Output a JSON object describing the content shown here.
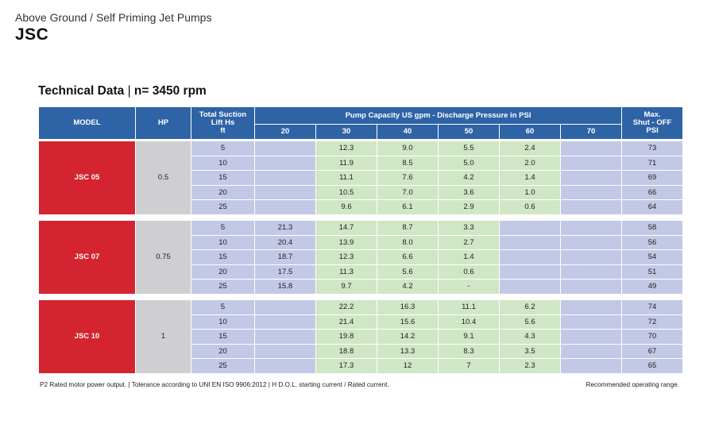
{
  "header": {
    "subtitle": "Above Ground / Self Priming Jet Pumps",
    "title": "JSC"
  },
  "tech_data": {
    "label": "Technical Data",
    "separator": "|",
    "rpm": "n= 3450 rpm"
  },
  "table": {
    "headers": {
      "model": "MODEL",
      "hp": "HP",
      "suction_line1": "Total Suction",
      "suction_line2": "Lift Hs",
      "suction_line3": "ft",
      "capacity": "Pump Capacity US gpm - Discharge Pressure in PSI",
      "max_line1": "Max.",
      "max_line2": "Shut - OFF",
      "max_line3": "PSI",
      "pressures": [
        "20",
        "30",
        "40",
        "50",
        "60",
        "70"
      ]
    },
    "models": [
      {
        "name": "JSC 05",
        "hp": "0.5",
        "rows": [
          {
            "lift": "5",
            "cells": [
              "",
              "12.3",
              "9.0",
              "5.5",
              "2.4",
              ""
            ],
            "max": "73"
          },
          {
            "lift": "10",
            "cells": [
              "",
              "11.9",
              "8.5",
              "5.0",
              "2.0",
              ""
            ],
            "max": "71"
          },
          {
            "lift": "15",
            "cells": [
              "",
              "11.1",
              "7.6",
              "4.2",
              "1.4",
              ""
            ],
            "max": "69"
          },
          {
            "lift": "20",
            "cells": [
              "",
              "10.5",
              "7.0",
              "3.6",
              "1.0",
              ""
            ],
            "max": "66"
          },
          {
            "lift": "25",
            "cells": [
              "",
              "9.6",
              "6.1",
              "2.9",
              "0.6",
              ""
            ],
            "max": "64"
          }
        ]
      },
      {
        "name": "JSC 07",
        "hp": "0.75",
        "rows": [
          {
            "lift": "5",
            "cells": [
              "21.3",
              "14.7",
              "8.7",
              "3.3",
              "",
              ""
            ],
            "max": "58"
          },
          {
            "lift": "10",
            "cells": [
              "20.4",
              "13.9",
              "8.0",
              "2.7",
              "",
              ""
            ],
            "max": "56"
          },
          {
            "lift": "15",
            "cells": [
              "18.7",
              "12.3",
              "6.6",
              "1.4",
              "",
              ""
            ],
            "max": "54"
          },
          {
            "lift": "20",
            "cells": [
              "17.5",
              "11.3",
              "5.6",
              "0.6",
              "",
              ""
            ],
            "max": "51"
          },
          {
            "lift": "25",
            "cells": [
              "15.8",
              "9.7",
              "4.2",
              "-",
              "",
              ""
            ],
            "max": "49"
          }
        ]
      },
      {
        "name": "JSC 10",
        "hp": "1",
        "rows": [
          {
            "lift": "5",
            "cells": [
              "",
              "22.2",
              "16.3",
              "11.1",
              "6.2",
              ""
            ],
            "max": "74"
          },
          {
            "lift": "10",
            "cells": [
              "",
              "21.4",
              "15.6",
              "10.4",
              "5.6",
              ""
            ],
            "max": "72"
          },
          {
            "lift": "15",
            "cells": [
              "",
              "19.8",
              "14.2",
              "9.1",
              "4.3",
              ""
            ],
            "max": "70"
          },
          {
            "lift": "20",
            "cells": [
              "",
              "18.8",
              "13.3",
              "8.3",
              "3.5",
              ""
            ],
            "max": "67"
          },
          {
            "lift": "25",
            "cells": [
              "",
              "17.3",
              "12",
              "7",
              "2.3",
              ""
            ],
            "max": "65"
          }
        ]
      }
    ]
  },
  "cell_colors": {
    "header_blue": "#2e63a6",
    "model_red": "#d42430",
    "hp_gray": "#cfcfd1",
    "recommended_green": "#cfe7c4",
    "default_blue": "#c3c8e6"
  },
  "footer": {
    "left": "P2  Rated motor power output.  |  Tolerance according to UNI EN ISO 9906:2012  |  H  D.O.L. starting current / Rated current.",
    "right": "Recommended operating range."
  }
}
